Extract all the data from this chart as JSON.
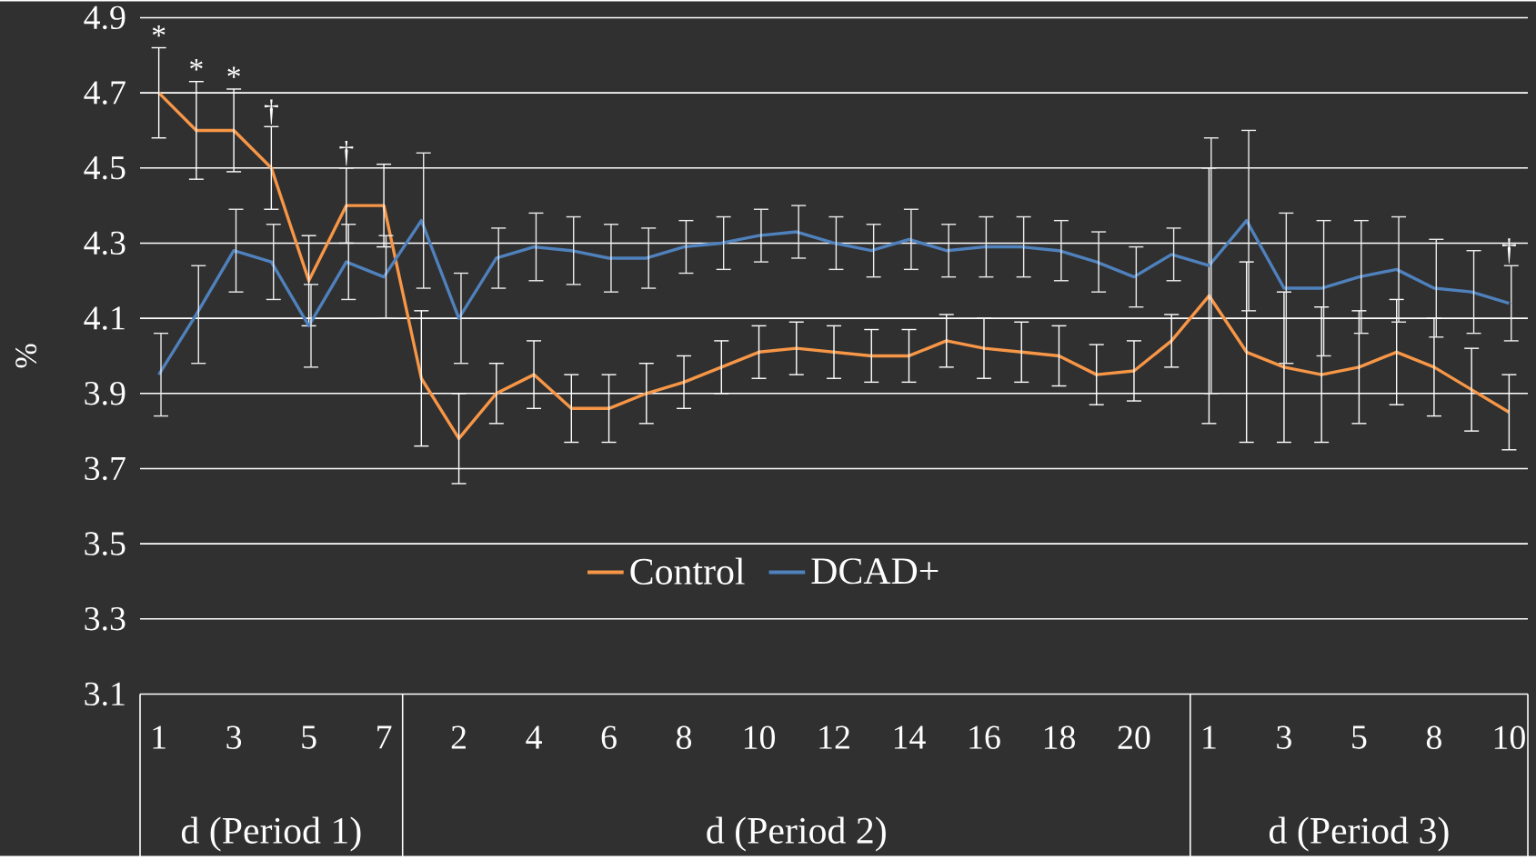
{
  "chart_data": {
    "type": "line",
    "ylabel": "%",
    "categories": [
      "1",
      null,
      "3",
      null,
      "5",
      null,
      "7",
      null,
      "2",
      null,
      "4",
      null,
      "6",
      null,
      "8",
      null,
      "10",
      null,
      "12",
      null,
      "14",
      null,
      "16",
      null,
      "18",
      null,
      "20",
      null,
      "1",
      null,
      "3",
      null,
      "5",
      null,
      "8",
      null,
      "10"
    ],
    "series": [
      {
        "name": "Control",
        "color": "#f79646",
        "values": [
          4.7,
          4.6,
          4.6,
          4.5,
          4.2,
          4.4,
          4.4,
          3.94,
          3.78,
          3.9,
          3.95,
          3.86,
          3.86,
          3.9,
          3.93,
          3.97,
          4.01,
          4.02,
          4.01,
          4.0,
          4.0,
          4.04,
          4.02,
          4.01,
          4.0,
          3.95,
          3.96,
          4.04,
          4.16,
          4.01,
          3.97,
          3.95,
          3.97,
          4.01,
          3.97,
          3.91,
          3.85
        ],
        "errors": [
          0.12,
          0.13,
          0.11,
          0.11,
          0.12,
          0.1,
          0.11,
          0.18,
          0.12,
          0.08,
          0.09,
          0.09,
          0.09,
          0.08,
          0.07,
          0.07,
          0.07,
          0.07,
          0.07,
          0.07,
          0.07,
          0.07,
          0.08,
          0.08,
          0.08,
          0.08,
          0.08,
          0.07,
          0.34,
          0.24,
          0.2,
          0.18,
          0.15,
          0.14,
          0.13,
          0.11,
          0.1
        ],
        "value_labels": [
          "*",
          "*",
          "*",
          "†",
          null,
          "†",
          null,
          null,
          null,
          null,
          null,
          null,
          null,
          null,
          null,
          null,
          null,
          null,
          null,
          null,
          null,
          null,
          null,
          null,
          null,
          null,
          null,
          null,
          null,
          null,
          null,
          null,
          null,
          null,
          null,
          null,
          null
        ]
      },
      {
        "name": "DCAD+",
        "color": "#4f81bd",
        "values": [
          3.95,
          4.11,
          4.28,
          4.25,
          4.08,
          4.25,
          4.21,
          4.36,
          4.1,
          4.26,
          4.29,
          4.28,
          4.26,
          4.26,
          4.29,
          4.3,
          4.32,
          4.33,
          4.3,
          4.28,
          4.31,
          4.28,
          4.29,
          4.29,
          4.28,
          4.25,
          4.21,
          4.27,
          4.24,
          4.36,
          4.18,
          4.18,
          4.21,
          4.23,
          4.18,
          4.17,
          4.14
        ],
        "errors": [
          0.11,
          0.13,
          0.11,
          0.1,
          0.11,
          0.1,
          0.11,
          0.18,
          0.12,
          0.08,
          0.09,
          0.09,
          0.09,
          0.08,
          0.07,
          0.07,
          0.07,
          0.07,
          0.07,
          0.07,
          0.08,
          0.07,
          0.08,
          0.08,
          0.08,
          0.08,
          0.08,
          0.07,
          0.34,
          0.24,
          0.2,
          0.18,
          0.15,
          0.14,
          0.13,
          0.11,
          0.1
        ],
        "value_labels": [
          null,
          null,
          null,
          null,
          null,
          null,
          null,
          null,
          null,
          null,
          null,
          null,
          null,
          null,
          null,
          null,
          null,
          null,
          null,
          null,
          null,
          null,
          null,
          null,
          null,
          null,
          null,
          null,
          null,
          null,
          null,
          null,
          null,
          null,
          null,
          null,
          "†"
        ]
      }
    ],
    "ylim": [
      3.1,
      4.9
    ],
    "yticks": [
      3.1,
      3.3,
      3.5,
      3.7,
      3.9,
      4.1,
      4.3,
      4.5,
      4.7,
      4.9
    ],
    "grid": "y",
    "legend": "bottom",
    "marker": "none",
    "line_style": "solid",
    "annotations": [
      "d (Period 1)",
      "d (Period 2)",
      "d (Period 3)"
    ]
  }
}
